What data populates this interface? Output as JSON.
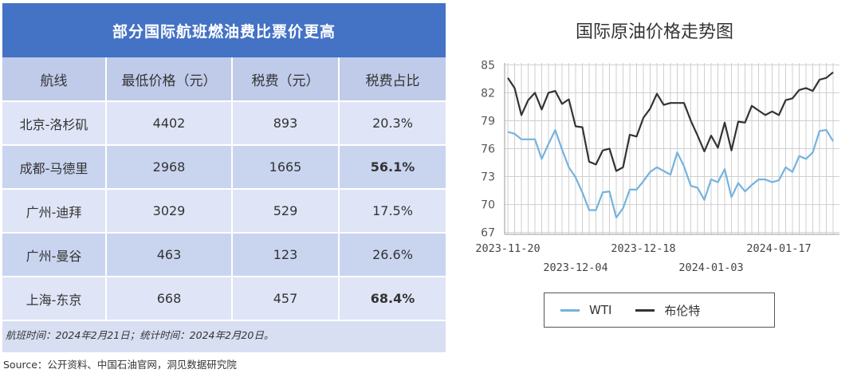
{
  "table": {
    "title": "部分国际航班燃油费比票价更高",
    "headers": [
      "航线",
      "最低价格（元）",
      "税费（元）",
      "税费占比"
    ],
    "rows": [
      {
        "route": "北京-洛杉矶",
        "price": "4402",
        "tax": "893",
        "ratio": "20.3%",
        "bold": false
      },
      {
        "route": "成都-马德里",
        "price": "2968",
        "tax": "1665",
        "ratio": "56.1%",
        "bold": true
      },
      {
        "route": "广州-迪拜",
        "price": "3029",
        "tax": "529",
        "ratio": "17.5%",
        "bold": false
      },
      {
        "route": "广州-曼谷",
        "price": "463",
        "tax": "123",
        "ratio": "26.6%",
        "bold": false
      },
      {
        "route": "上海-东京",
        "price": "668",
        "tax": "457",
        "ratio": "68.4%",
        "bold": true
      }
    ],
    "footnote": "航班时间：2024年2月21日；统计时间：2024年2月20日。"
  },
  "source": "Source：公开资料、中国石油官网，洞见数据研究院",
  "chart_data": {
    "type": "line",
    "title": "国际原油价格走势图",
    "y_ticks": [
      67,
      70,
      73,
      76,
      79,
      82,
      85
    ],
    "ylim": [
      66.8,
      85.2
    ],
    "x_tick_labels": [
      {
        "label": "2023-11-20",
        "index": 0,
        "row": 1
      },
      {
        "label": "2023-12-04",
        "index": 10,
        "row": 2
      },
      {
        "label": "2023-12-18",
        "index": 20,
        "row": 1
      },
      {
        "label": "2024-01-03",
        "index": 30,
        "row": 2
      },
      {
        "label": "2024-01-17",
        "index": 40,
        "row": 1
      }
    ],
    "series": [
      {
        "name": "WTI",
        "color": "#74b3de",
        "values": [
          77.8,
          77.6,
          77.0,
          77.0,
          77.0,
          74.9,
          76.5,
          78.0,
          75.9,
          74.0,
          72.9,
          71.3,
          69.4,
          69.4,
          71.3,
          71.4,
          68.6,
          69.6,
          71.6,
          71.6,
          72.5,
          73.5,
          74.0,
          73.6,
          73.2,
          75.6,
          74.1,
          72.0,
          71.8,
          70.5,
          72.7,
          72.4,
          73.8,
          70.8,
          72.3,
          71.4,
          72.1,
          72.7,
          72.7,
          72.4,
          72.6,
          74.0,
          73.5,
          75.2,
          74.9,
          75.6,
          77.9,
          78.0,
          76.8
        ]
      },
      {
        "name": "布伦特",
        "color": "#333333",
        "values": [
          83.6,
          82.5,
          79.6,
          81.2,
          82.0,
          80.2,
          82.0,
          82.2,
          80.8,
          81.3,
          78.4,
          78.3,
          74.6,
          74.3,
          75.8,
          76.0,
          73.6,
          74.0,
          77.5,
          77.3,
          79.3,
          80.3,
          81.9,
          80.7,
          80.9,
          80.9,
          80.9,
          79.0,
          77.4,
          75.7,
          77.4,
          76.1,
          78.8,
          75.8,
          78.9,
          78.8,
          80.6,
          80.1,
          79.6,
          80.0,
          79.6,
          81.2,
          81.4,
          82.3,
          82.5,
          82.2,
          83.4,
          83.6,
          84.2
        ]
      }
    ]
  }
}
